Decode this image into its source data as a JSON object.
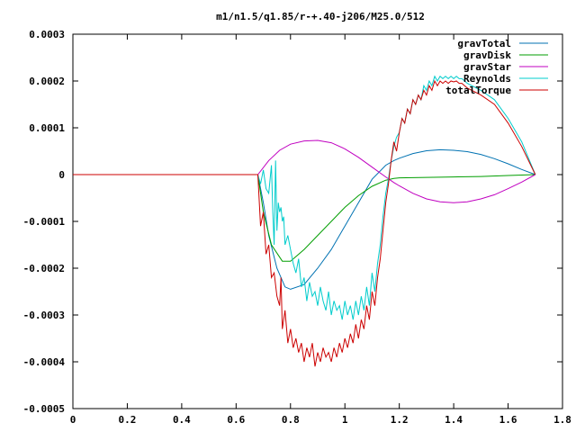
{
  "chart_data": {
    "type": "line",
    "title": "m1/n1.5/q1.85/r-+.40-j206/M25.0/512",
    "xlabel": "",
    "ylabel": "",
    "xlim": [
      0,
      1.8
    ],
    "ylim": [
      -0.0005,
      0.0003
    ],
    "x_ticks": [
      "0",
      "0.2",
      "0.4",
      "0.6",
      "0.8",
      "1",
      "1.2",
      "1.4",
      "1.6",
      "1.8"
    ],
    "y_ticks": [
      "0.0003",
      "0.0002",
      "0.0001",
      "0",
      "-0.0001",
      "-0.0002",
      "-0.0003",
      "-0.0004",
      "-0.0005"
    ],
    "grid": false,
    "legend_position": "top-right",
    "series": [
      {
        "name": "gravTotal",
        "color": "#0072b2",
        "x": [
          0,
          0.67,
          0.68,
          0.7,
          0.72,
          0.75,
          0.78,
          0.8,
          0.85,
          0.9,
          0.95,
          1.0,
          1.05,
          1.1,
          1.15,
          1.18,
          1.2,
          1.25,
          1.3,
          1.35,
          1.4,
          1.45,
          1.5,
          1.55,
          1.6,
          1.65,
          1.7
        ],
        "values": [
          0,
          0,
          0,
          -6e-05,
          -0.00013,
          -0.0002,
          -0.00024,
          -0.000245,
          -0.000235,
          -0.0002,
          -0.00016,
          -0.00011,
          -6e-05,
          -1e-05,
          2e-05,
          3e-05,
          3.5e-05,
          4.5e-05,
          5.1e-05,
          5.3e-05,
          5.2e-05,
          4.9e-05,
          4.3e-05,
          3.4e-05,
          2.3e-05,
          1.1e-05,
          0
        ]
      },
      {
        "name": "gravDisk",
        "color": "#009e00",
        "x": [
          0,
          0.67,
          0.68,
          0.7,
          0.73,
          0.77,
          0.8,
          0.85,
          0.9,
          0.95,
          1.0,
          1.05,
          1.1,
          1.15,
          1.18,
          1.2,
          1.3,
          1.4,
          1.5,
          1.6,
          1.7
        ],
        "values": [
          0,
          0,
          0,
          -8e-05,
          -0.00015,
          -0.000185,
          -0.000185,
          -0.00016,
          -0.00013,
          -0.0001,
          -7e-05,
          -4.5e-05,
          -2.5e-05,
          -1.2e-05,
          -8e-06,
          -7e-06,
          -6e-06,
          -5e-06,
          -4e-06,
          -2e-06,
          0
        ]
      },
      {
        "name": "gravStar",
        "color": "#c000c0",
        "x": [
          0,
          0.67,
          0.68,
          0.72,
          0.76,
          0.8,
          0.85,
          0.9,
          0.95,
          1.0,
          1.05,
          1.1,
          1.15,
          1.18,
          1.2,
          1.25,
          1.3,
          1.35,
          1.4,
          1.45,
          1.5,
          1.55,
          1.6,
          1.65,
          1.7
        ],
        "values": [
          0,
          0,
          0,
          3e-05,
          5.2e-05,
          6.5e-05,
          7.2e-05,
          7.3e-05,
          6.8e-05,
          5.5e-05,
          3.7e-05,
          1.6e-05,
          -5e-06,
          -1.7e-05,
          -2.4e-05,
          -4e-05,
          -5.2e-05,
          -5.8e-05,
          -6e-05,
          -5.8e-05,
          -5.2e-05,
          -4.3e-05,
          -3e-05,
          -1.6e-05,
          0
        ]
      },
      {
        "name": "Reynolds",
        "color": "#00cccc",
        "x": [
          0,
          0.67,
          0.68,
          0.69,
          0.7,
          0.71,
          0.72,
          0.725,
          0.73,
          0.735,
          0.74,
          0.745,
          0.75,
          0.755,
          0.76,
          0.765,
          0.77,
          0.775,
          0.78,
          0.79,
          0.8,
          0.81,
          0.82,
          0.83,
          0.84,
          0.85,
          0.86,
          0.87,
          0.88,
          0.89,
          0.9,
          0.91,
          0.92,
          0.93,
          0.94,
          0.95,
          0.96,
          0.97,
          0.98,
          0.99,
          1.0,
          1.01,
          1.02,
          1.03,
          1.04,
          1.05,
          1.06,
          1.07,
          1.08,
          1.09,
          1.1,
          1.11,
          1.12,
          1.13,
          1.14,
          1.15,
          1.16,
          1.17,
          1.18,
          1.19,
          1.2,
          1.21,
          1.22,
          1.23,
          1.24,
          1.25,
          1.26,
          1.27,
          1.28,
          1.29,
          1.3,
          1.31,
          1.32,
          1.33,
          1.34,
          1.35,
          1.36,
          1.37,
          1.38,
          1.39,
          1.4,
          1.41,
          1.42,
          1.43,
          1.44,
          1.45,
          1.5,
          1.55,
          1.6,
          1.65,
          1.7
        ],
        "values": [
          0,
          0,
          0,
          -2e-05,
          1e-05,
          -3e-05,
          -4e-05,
          -1e-05,
          2e-05,
          -8e-05,
          -0.00015,
          3e-05,
          -0.00012,
          -6e-05,
          -8e-05,
          -7e-05,
          -0.0001,
          -9e-05,
          -0.00015,
          -0.00013,
          -0.00016,
          -0.00019,
          -0.00021,
          -0.00018,
          -0.00024,
          -0.00022,
          -0.00027,
          -0.00023,
          -0.00026,
          -0.00025,
          -0.00028,
          -0.00024,
          -0.00027,
          -0.00029,
          -0.00025,
          -0.0003,
          -0.00027,
          -0.00029,
          -0.00028,
          -0.00031,
          -0.00027,
          -0.0003,
          -0.00028,
          -0.00031,
          -0.00027,
          -0.0003,
          -0.00026,
          -0.00029,
          -0.00024,
          -0.00028,
          -0.00021,
          -0.00025,
          -0.00019,
          -0.00015,
          -9e-05,
          -4e-05,
          -1e-05,
          3e-05,
          6e-05,
          8e-05,
          9e-05,
          0.00012,
          0.00011,
          0.00014,
          0.00013,
          0.00016,
          0.00015,
          0.00017,
          0.00016,
          0.00019,
          0.00018,
          0.0002,
          0.00019,
          0.00021,
          0.0002,
          0.00021,
          0.000205,
          0.00021,
          0.000205,
          0.00021,
          0.000205,
          0.00021,
          0.000205,
          0.000205,
          0.0002,
          0.000195,
          0.00018,
          0.00016,
          0.00012,
          7e-05,
          0
        ]
      },
      {
        "name": "totalTorque",
        "color": "#cc0000",
        "x": [
          0,
          0.67,
          0.68,
          0.69,
          0.7,
          0.71,
          0.72,
          0.73,
          0.74,
          0.75,
          0.76,
          0.765,
          0.77,
          0.78,
          0.79,
          0.8,
          0.81,
          0.82,
          0.83,
          0.84,
          0.85,
          0.86,
          0.87,
          0.88,
          0.89,
          0.9,
          0.91,
          0.92,
          0.93,
          0.94,
          0.95,
          0.96,
          0.97,
          0.98,
          0.99,
          1.0,
          1.01,
          1.02,
          1.03,
          1.04,
          1.05,
          1.06,
          1.07,
          1.08,
          1.09,
          1.1,
          1.11,
          1.12,
          1.13,
          1.14,
          1.15,
          1.16,
          1.17,
          1.18,
          1.19,
          1.2,
          1.21,
          1.22,
          1.23,
          1.24,
          1.25,
          1.26,
          1.27,
          1.28,
          1.29,
          1.3,
          1.31,
          1.32,
          1.33,
          1.34,
          1.35,
          1.36,
          1.37,
          1.38,
          1.39,
          1.4,
          1.41,
          1.42,
          1.43,
          1.44,
          1.45,
          1.5,
          1.55,
          1.6,
          1.65,
          1.7
        ],
        "values": [
          0,
          0,
          0,
          -0.00011,
          -8e-05,
          -0.00017,
          -0.00015,
          -0.00022,
          -0.00021,
          -0.00026,
          -0.00028,
          -0.00022,
          -0.00033,
          -0.00029,
          -0.00036,
          -0.00033,
          -0.00037,
          -0.00035,
          -0.00038,
          -0.00036,
          -0.0004,
          -0.00037,
          -0.00039,
          -0.00036,
          -0.00041,
          -0.00038,
          -0.0004,
          -0.00037,
          -0.00039,
          -0.00038,
          -0.0004,
          -0.00037,
          -0.00039,
          -0.00036,
          -0.00038,
          -0.00035,
          -0.00037,
          -0.00034,
          -0.00036,
          -0.00032,
          -0.00035,
          -0.00031,
          -0.00033,
          -0.00028,
          -0.00031,
          -0.00025,
          -0.00028,
          -0.00022,
          -0.00018,
          -0.00012,
          -6e-05,
          -2e-05,
          3e-05,
          7e-05,
          5e-05,
          9e-05,
          0.00012,
          0.00011,
          0.00014,
          0.00013,
          0.00016,
          0.00015,
          0.00017,
          0.00016,
          0.00018,
          0.00017,
          0.00019,
          0.00018,
          0.0002,
          0.00019,
          0.0002,
          0.000195,
          0.0002,
          0.000195,
          0.0002,
          0.000198,
          0.0002,
          0.000195,
          0.000195,
          0.00019,
          0.000185,
          0.00017,
          0.00015,
          0.00011,
          6e-05,
          0
        ]
      }
    ]
  }
}
